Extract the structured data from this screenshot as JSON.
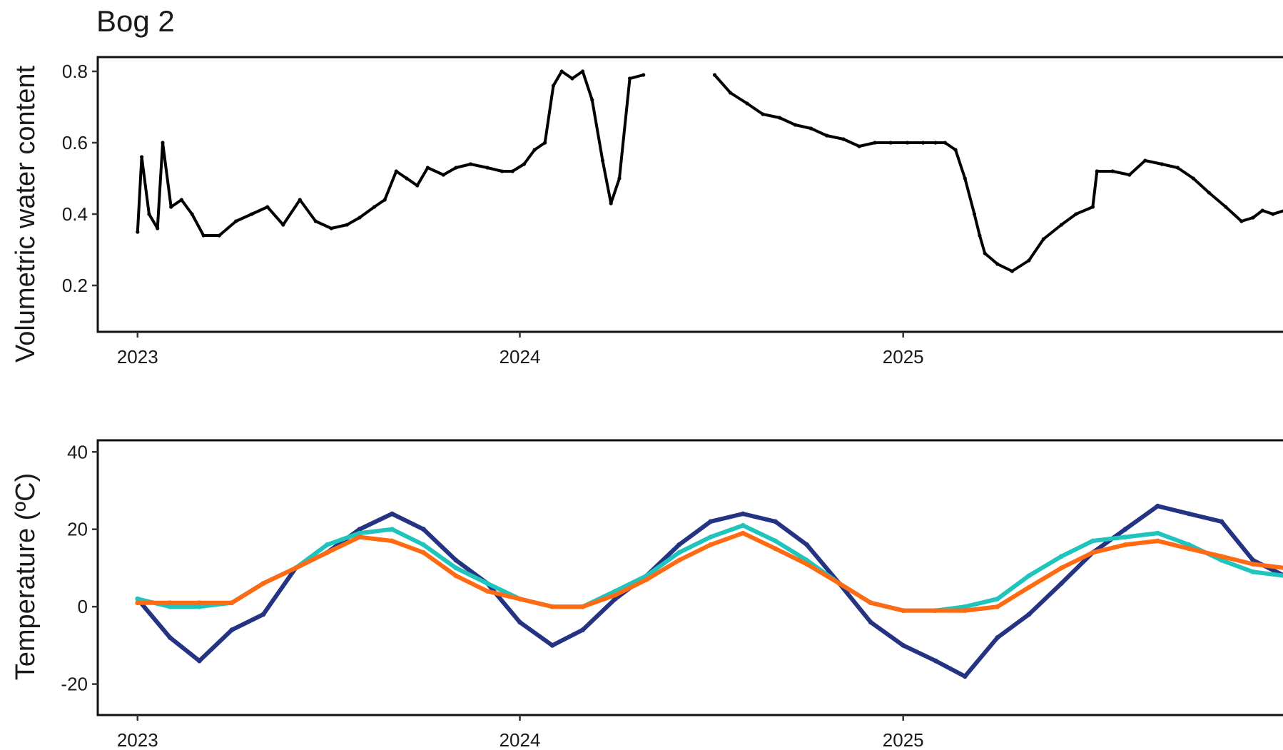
{
  "chart_data": [
    {
      "type": "scatter",
      "title": "Bog 2",
      "xlabel": "",
      "ylabel": "Volumetric water content",
      "xlim": [
        "2022-11-24",
        "2025-12-31"
      ],
      "ylim": [
        0.07,
        0.84
      ],
      "yticks": [
        0.2,
        0.4,
        0.6,
        0.8
      ],
      "ytick_labels": [
        "0.2",
        "0.4",
        "0.6",
        "0.8"
      ],
      "xticks": [
        "2023-01-01",
        "2024-01-01",
        "2025-01-01"
      ],
      "xtick_labels": [
        "2023",
        "2024",
        "2025"
      ],
      "grid": false,
      "series": [
        {
          "color": "#000000",
          "points": [
            [
              "2023-01-01",
              0.35
            ],
            [
              "2023-01-05",
              0.56
            ],
            [
              "2023-01-12",
              0.4
            ],
            [
              "2023-01-20",
              0.36
            ],
            [
              "2023-01-25",
              0.6
            ],
            [
              "2023-02-02",
              0.42
            ],
            [
              "2023-02-12",
              0.44
            ],
            [
              "2023-02-22",
              0.4
            ],
            [
              "2023-03-05",
              0.34
            ],
            [
              "2023-03-20",
              0.34
            ],
            [
              "2023-04-05",
              0.38
            ],
            [
              "2023-04-20",
              0.4
            ],
            [
              "2023-05-05",
              0.42
            ],
            [
              "2023-05-20",
              0.37
            ],
            [
              "2023-06-05",
              0.44
            ],
            [
              "2023-06-20",
              0.38
            ],
            [
              "2023-07-05",
              0.36
            ],
            [
              "2023-07-20",
              0.37
            ],
            [
              "2023-08-01",
              0.39
            ],
            [
              "2023-08-15",
              0.42
            ],
            [
              "2023-08-25",
              0.44
            ],
            [
              "2023-09-05",
              0.52
            ],
            [
              "2023-09-15",
              0.5
            ],
            [
              "2023-09-25",
              0.48
            ],
            [
              "2023-10-05",
              0.53
            ],
            [
              "2023-10-20",
              0.51
            ],
            [
              "2023-11-01",
              0.53
            ],
            [
              "2023-11-15",
              0.54
            ],
            [
              "2023-12-01",
              0.53
            ],
            [
              "2023-12-15",
              0.52
            ],
            [
              "2023-12-25",
              0.52
            ],
            [
              "2024-01-05",
              0.54
            ],
            [
              "2024-01-15",
              0.58
            ],
            [
              "2024-01-25",
              0.6
            ],
            [
              "2024-02-02",
              0.76
            ],
            [
              "2024-02-10",
              0.8
            ],
            [
              "2024-02-20",
              0.78
            ],
            [
              "2024-03-01",
              0.8
            ],
            [
              "2024-03-10",
              0.72
            ],
            [
              "2024-03-20",
              0.55
            ],
            [
              "2024-03-28",
              0.43
            ],
            [
              "2024-04-05",
              0.5
            ],
            [
              "2024-04-15",
              0.78
            ],
            [
              "2024-04-28",
              0.79
            ],
            [
              "2024-07-05",
              0.79
            ],
            [
              "2024-07-20",
              0.74
            ],
            [
              "2024-08-05",
              0.71
            ],
            [
              "2024-08-20",
              0.68
            ],
            [
              "2024-09-05",
              0.67
            ],
            [
              "2024-09-20",
              0.65
            ],
            [
              "2024-10-05",
              0.64
            ],
            [
              "2024-10-20",
              0.62
            ],
            [
              "2024-11-05",
              0.61
            ],
            [
              "2024-11-20",
              0.59
            ],
            [
              "2024-12-05",
              0.6
            ],
            [
              "2024-12-20",
              0.6
            ],
            [
              "2025-01-05",
              0.6
            ],
            [
              "2025-01-20",
              0.6
            ],
            [
              "2025-02-01",
              0.6
            ],
            [
              "2025-02-10",
              0.6
            ],
            [
              "2025-02-20",
              0.58
            ],
            [
              "2025-03-01",
              0.5
            ],
            [
              "2025-03-10",
              0.4
            ],
            [
              "2025-03-15",
              0.34
            ],
            [
              "2025-03-20",
              0.29
            ],
            [
              "2025-04-01",
              0.26
            ],
            [
              "2025-04-15",
              0.24
            ],
            [
              "2025-05-01",
              0.27
            ],
            [
              "2025-05-15",
              0.33
            ],
            [
              "2025-06-01",
              0.37
            ],
            [
              "2025-06-15",
              0.4
            ],
            [
              "2025-07-01",
              0.42
            ],
            [
              "2025-07-05",
              0.52
            ],
            [
              "2025-07-20",
              0.52
            ],
            [
              "2025-08-05",
              0.51
            ],
            [
              "2025-08-20",
              0.55
            ],
            [
              "2025-09-05",
              0.54
            ],
            [
              "2025-09-20",
              0.53
            ],
            [
              "2025-10-05",
              0.5
            ],
            [
              "2025-10-20",
              0.46
            ],
            [
              "2025-11-05",
              0.42
            ],
            [
              "2025-11-20",
              0.38
            ],
            [
              "2025-12-01",
              0.39
            ],
            [
              "2025-12-10",
              0.41
            ],
            [
              "2025-12-20",
              0.4
            ],
            [
              "2025-12-31",
              0.41
            ]
          ]
        }
      ]
    },
    {
      "type": "scatter",
      "title": "",
      "xlabel": "",
      "ylabel": "Temperature (ºC)",
      "xlim": [
        "2022-11-24",
        "2025-12-31"
      ],
      "ylim": [
        -28,
        43
      ],
      "yticks": [
        -20,
        0,
        20,
        40
      ],
      "ytick_labels": [
        "-20",
        "0",
        "20",
        "40"
      ],
      "xticks": [
        "2023-01-01",
        "2024-01-01",
        "2025-01-01"
      ],
      "xtick_labels": [
        "2023",
        "2024",
        "2025"
      ],
      "grid": false,
      "series": [
        {
          "color": "#243382",
          "points": [
            [
              "2023-01-01",
              2
            ],
            [
              "2023-02-01",
              -8
            ],
            [
              "2023-03-01",
              -14
            ],
            [
              "2023-04-01",
              -6
            ],
            [
              "2023-05-01",
              -2
            ],
            [
              "2023-06-01",
              10
            ],
            [
              "2023-07-01",
              14
            ],
            [
              "2023-08-01",
              20
            ],
            [
              "2023-09-01",
              24
            ],
            [
              "2023-10-01",
              20
            ],
            [
              "2023-11-01",
              12
            ],
            [
              "2023-12-01",
              6
            ],
            [
              "2024-01-01",
              -4
            ],
            [
              "2024-02-01",
              -10
            ],
            [
              "2024-03-01",
              -6
            ],
            [
              "2024-04-01",
              2
            ],
            [
              "2024-05-01",
              8
            ],
            [
              "2024-06-01",
              16
            ],
            [
              "2024-07-01",
              22
            ],
            [
              "2024-08-01",
              24
            ],
            [
              "2024-09-01",
              22
            ],
            [
              "2024-10-01",
              16
            ],
            [
              "2024-11-01",
              6
            ],
            [
              "2024-12-01",
              -4
            ],
            [
              "2025-01-01",
              -10
            ],
            [
              "2025-02-01",
              -14
            ],
            [
              "2025-03-01",
              -18
            ],
            [
              "2025-04-01",
              -8
            ],
            [
              "2025-05-01",
              -2
            ],
            [
              "2025-06-01",
              6
            ],
            [
              "2025-07-01",
              14
            ],
            [
              "2025-08-01",
              20
            ],
            [
              "2025-09-01",
              26
            ],
            [
              "2025-10-01",
              24
            ],
            [
              "2025-11-01",
              22
            ],
            [
              "2025-12-01",
              12
            ],
            [
              "2025-12-31",
              8
            ]
          ]
        },
        {
          "color": "#1fc4bd",
          "points": [
            [
              "2023-01-01",
              2
            ],
            [
              "2023-02-01",
              0
            ],
            [
              "2023-03-01",
              0
            ],
            [
              "2023-04-01",
              1
            ],
            [
              "2023-05-01",
              6
            ],
            [
              "2023-06-01",
              10
            ],
            [
              "2023-07-01",
              16
            ],
            [
              "2023-08-01",
              19
            ],
            [
              "2023-09-01",
              20
            ],
            [
              "2023-10-01",
              16
            ],
            [
              "2023-11-01",
              10
            ],
            [
              "2023-12-01",
              6
            ],
            [
              "2024-01-01",
              2
            ],
            [
              "2024-02-01",
              0
            ],
            [
              "2024-03-01",
              0
            ],
            [
              "2024-04-01",
              4
            ],
            [
              "2024-05-01",
              8
            ],
            [
              "2024-06-01",
              14
            ],
            [
              "2024-07-01",
              18
            ],
            [
              "2024-08-01",
              21
            ],
            [
              "2024-09-01",
              17
            ],
            [
              "2024-10-01",
              12
            ],
            [
              "2024-11-01",
              6
            ],
            [
              "2024-12-01",
              1
            ],
            [
              "2025-01-01",
              -1
            ],
            [
              "2025-02-01",
              -1
            ],
            [
              "2025-03-01",
              0
            ],
            [
              "2025-04-01",
              2
            ],
            [
              "2025-05-01",
              8
            ],
            [
              "2025-06-01",
              13
            ],
            [
              "2025-07-01",
              17
            ],
            [
              "2025-08-01",
              18
            ],
            [
              "2025-09-01",
              19
            ],
            [
              "2025-10-01",
              16
            ],
            [
              "2025-11-01",
              12
            ],
            [
              "2025-12-01",
              9
            ],
            [
              "2025-12-31",
              8
            ]
          ]
        },
        {
          "color": "#ff6a12",
          "points": [
            [
              "2023-01-01",
              1
            ],
            [
              "2023-02-01",
              1
            ],
            [
              "2023-03-01",
              1
            ],
            [
              "2023-04-01",
              1
            ],
            [
              "2023-05-01",
              6
            ],
            [
              "2023-06-01",
              10
            ],
            [
              "2023-07-01",
              14
            ],
            [
              "2023-08-01",
              18
            ],
            [
              "2023-09-01",
              17
            ],
            [
              "2023-10-01",
              14
            ],
            [
              "2023-11-01",
              8
            ],
            [
              "2023-12-01",
              4
            ],
            [
              "2024-01-01",
              2
            ],
            [
              "2024-02-01",
              0
            ],
            [
              "2024-03-01",
              0
            ],
            [
              "2024-04-01",
              3
            ],
            [
              "2024-05-01",
              7
            ],
            [
              "2024-06-01",
              12
            ],
            [
              "2024-07-01",
              16
            ],
            [
              "2024-08-01",
              19
            ],
            [
              "2024-09-01",
              15
            ],
            [
              "2024-10-01",
              11
            ],
            [
              "2024-11-01",
              6
            ],
            [
              "2024-12-01",
              1
            ],
            [
              "2025-01-01",
              -1
            ],
            [
              "2025-02-01",
              -1
            ],
            [
              "2025-03-01",
              -1
            ],
            [
              "2025-04-01",
              0
            ],
            [
              "2025-05-01",
              5
            ],
            [
              "2025-06-01",
              10
            ],
            [
              "2025-07-01",
              14
            ],
            [
              "2025-08-01",
              16
            ],
            [
              "2025-09-01",
              17
            ],
            [
              "2025-10-01",
              15
            ],
            [
              "2025-11-01",
              13
            ],
            [
              "2025-12-01",
              11
            ],
            [
              "2025-12-31",
              10
            ]
          ]
        }
      ]
    }
  ]
}
